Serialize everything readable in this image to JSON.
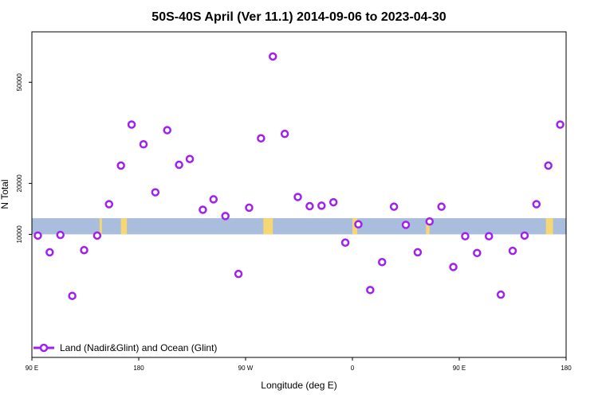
{
  "chart_data": {
    "type": "scatter",
    "title": "50S-40S April (Ver 11.1)   2014-09-06 to 2023-04-30",
    "xlabel": "Longitude (deg E)",
    "ylabel": "N Total",
    "y_scale": "sqrt",
    "xlim": [
      90,
      540
    ],
    "ylim": [
      0,
      70000
    ],
    "x_ticks": [
      {
        "value": 90,
        "label": "90 E"
      },
      {
        "value": 180,
        "label": "180"
      },
      {
        "value": 270,
        "label": "90 W"
      },
      {
        "value": 360,
        "label": "0"
      },
      {
        "value": 450,
        "label": "90 E"
      },
      {
        "value": 540,
        "label": "180"
      }
    ],
    "y_ticks": [
      {
        "value": 10000,
        "label": "10000"
      },
      {
        "value": 20000,
        "label": "20000"
      },
      {
        "value": 50000,
        "label": "50000"
      }
    ],
    "grid": false,
    "legend": {
      "position": "bottom-left",
      "entries": [
        "Land (Nadir&Glint) and Ocean (Glint)"
      ]
    },
    "colors": {
      "points": "#a020f0",
      "ocean_band": "#a8bedc",
      "land_band": "#f7d674"
    },
    "land_band": {
      "y_range": [
        10000,
        12800
      ],
      "x_segments": [
        [
          147,
          149
        ],
        [
          165,
          170
        ],
        [
          285,
          293
        ],
        [
          360,
          364
        ],
        [
          362,
          364
        ],
        [
          422,
          425
        ],
        [
          523,
          529
        ]
      ]
    },
    "series": [
      {
        "x": [
          95,
          105,
          114,
          124,
          134,
          145,
          155,
          165,
          174,
          184,
          194,
          204,
          214,
          223,
          234,
          243,
          253,
          264,
          273,
          283,
          293,
          303,
          314,
          324,
          334,
          344,
          354,
          365,
          375,
          385,
          395,
          405,
          415,
          425,
          435,
          445,
          455,
          465,
          475,
          485,
          495,
          505,
          515,
          525,
          535
        ],
        "y": [
          9800,
          7300,
          9900,
          2500,
          7600,
          9800,
          15500,
          24300,
          35800,
          30000,
          18000,
          34100,
          24500,
          26000,
          14400,
          16500,
          13200,
          4600,
          14800,
          31700,
          59800,
          33000,
          17000,
          15100,
          15200,
          15900,
          8700,
          11700,
          3000,
          6000,
          15000,
          11600,
          7300,
          12200,
          15000,
          5400,
          9700,
          7200,
          9700,
          2600,
          7500,
          9800,
          15500,
          24300,
          35800
        ]
      }
    ]
  }
}
